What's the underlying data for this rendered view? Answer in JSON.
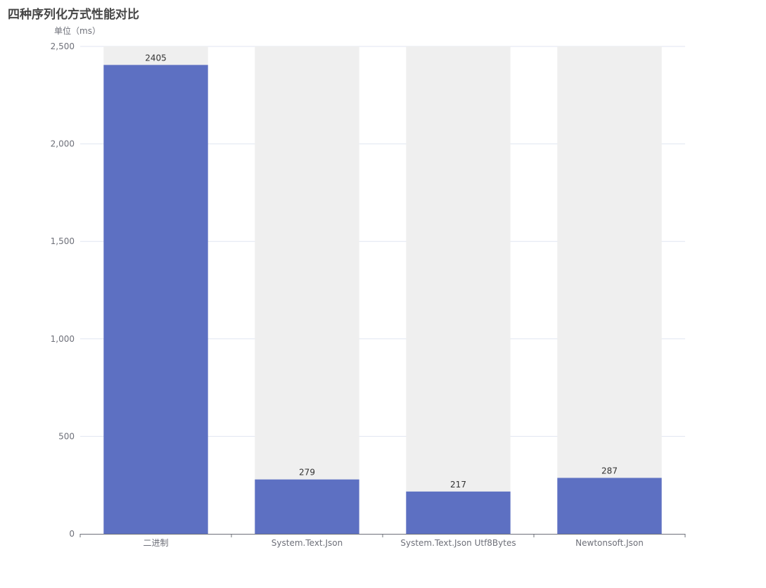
{
  "chart_data": {
    "type": "bar",
    "title": "四种序列化方式性能对比",
    "ylabel": "单位（ms）",
    "xlabel": "",
    "categories": [
      "二进制",
      "System.Text.Json",
      "System.Text.Json Utf8Bytes",
      "Newtonsoft.Json"
    ],
    "series": [
      {
        "values": [
          2405,
          279,
          217,
          287
        ]
      }
    ],
    "ylim": [
      0,
      2500
    ],
    "yticks": [
      0,
      500,
      1000,
      1500,
      2000,
      2500
    ],
    "ytick_labels": [
      "0",
      "500",
      "1,000",
      "1,500",
      "2,000",
      "2,500"
    ],
    "show_background_bars": true,
    "grid": true,
    "colors": {
      "bar": "#5d70c2",
      "background_bar": "#efefef",
      "grid": "#e0e6f1",
      "axis": "#6e7079"
    }
  }
}
